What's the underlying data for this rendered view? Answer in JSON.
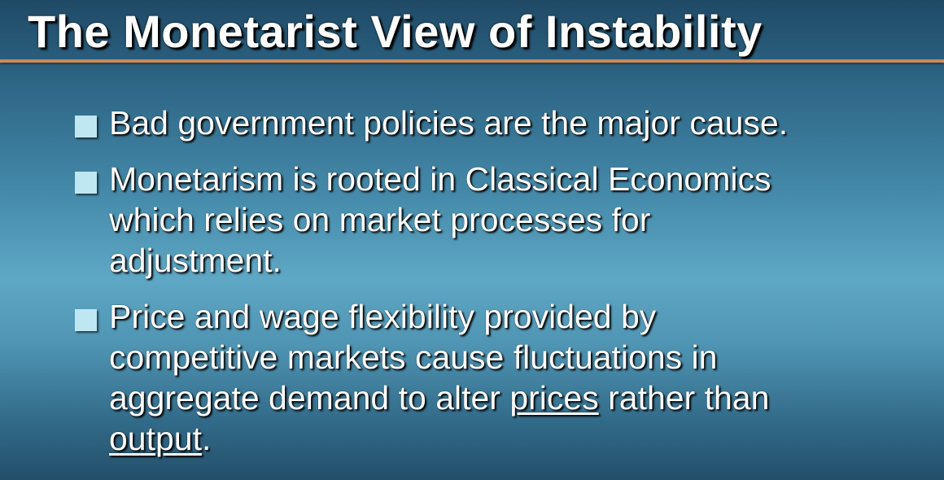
{
  "slide": {
    "title": "The Monetarist View of Instability",
    "colors": {
      "title_text": "#ffffff",
      "rule": "#c98a5a",
      "bullet_marker": "#bfe7f1",
      "body_text": "#ffffff"
    },
    "bullets": [
      {
        "lines": [
          "Bad government policies are the major cause."
        ]
      },
      {
        "lines": [
          "Monetarism is rooted in Classical Economics",
          "which relies on market processes for",
          "adjustment."
        ]
      },
      {
        "line1": "Price and wage flexibility provided by",
        "line2": "competitive markets cause fluctuations in",
        "line3_before": "aggregate demand to alter ",
        "line3_underlined": "prices",
        "line3_after": " rather than",
        "line4_underlined": "output",
        "line4_after": "."
      }
    ]
  }
}
